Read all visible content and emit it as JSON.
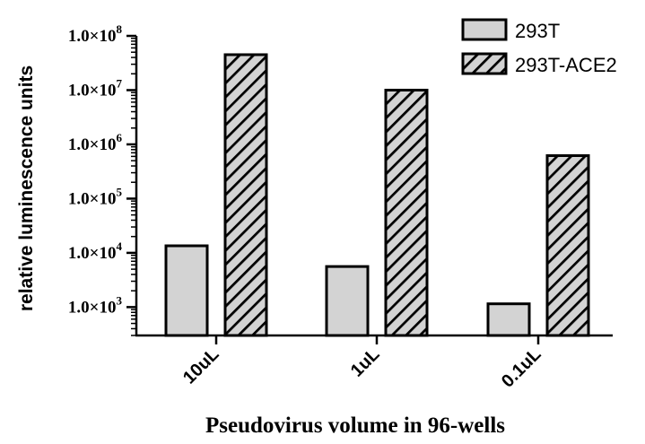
{
  "chart_data": {
    "type": "bar",
    "scale": "log",
    "ylim": [
      300,
      100000000
    ],
    "yticks": [
      {
        "value": 1000,
        "mantissa": "1.0",
        "times": "×",
        "base": "10",
        "exp": "3"
      },
      {
        "value": 10000,
        "mantissa": "1.0",
        "times": "×",
        "base": "10",
        "exp": "4"
      },
      {
        "value": 100000,
        "mantissa": "1.0",
        "times": "×",
        "base": "10",
        "exp": "5"
      },
      {
        "value": 1000000,
        "mantissa": "1.0",
        "times": "×",
        "base": "10",
        "exp": "6"
      },
      {
        "value": 10000000,
        "mantissa": "1.0",
        "times": "×",
        "base": "10",
        "exp": "7"
      },
      {
        "value": 100000000,
        "mantissa": "1.0",
        "times": "×",
        "base": "10",
        "exp": "8"
      }
    ],
    "categories": [
      "10uL",
      "1uL",
      "0.1uL"
    ],
    "series": [
      {
        "name": "293T",
        "pattern": "solid",
        "color": "#d3d3d3",
        "values": [
          13500,
          5600,
          1150
        ]
      },
      {
        "name": "293T-ACE2",
        "pattern": "hatched",
        "color": "#d3d3d3",
        "values": [
          45000000,
          10000000,
          620000
        ]
      }
    ],
    "xlabel": "Pseudovirus volume in 96-wells",
    "ylabel": "relative luminescence units",
    "legend_position": "top-right",
    "grid": false
  }
}
